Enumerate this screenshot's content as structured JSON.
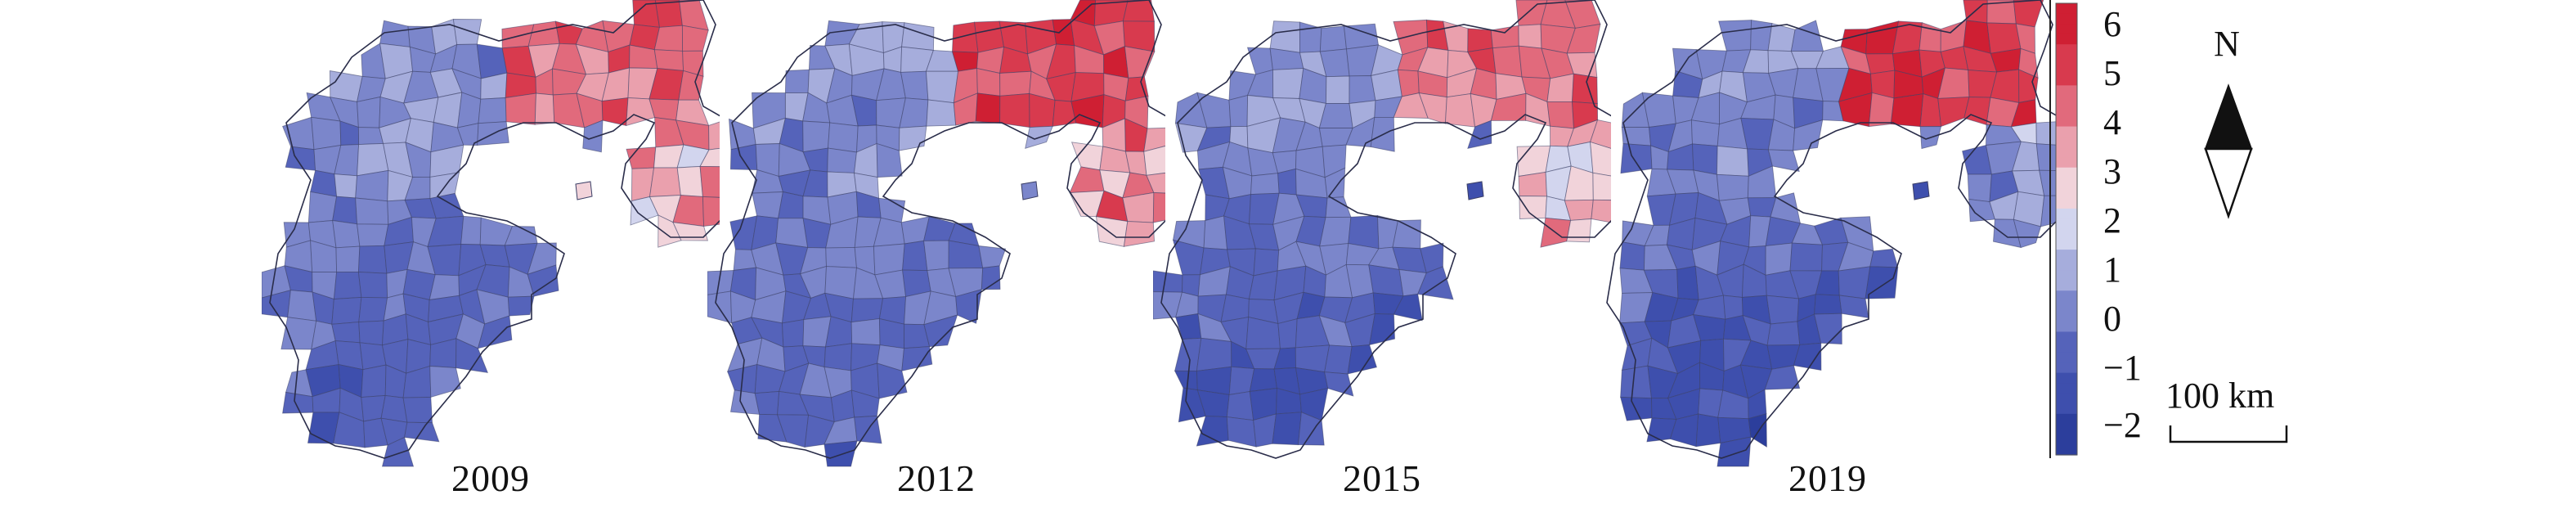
{
  "years": [
    "2009",
    "2012",
    "2015",
    "2019"
  ],
  "legend": {
    "ticks": [
      "6",
      "5",
      "4",
      "3",
      "2",
      "1",
      "0",
      "−1",
      "−2"
    ],
    "range": [
      -2.4,
      6.4
    ],
    "colors": [
      "#2c3e9c",
      "#3e4fad",
      "#5563ba",
      "#7b86cb",
      "#a6addc",
      "#d2d5ee",
      "#f1d3da",
      "#eaa0ad",
      "#e16a7c",
      "#d83a4e",
      "#cf1f33"
    ]
  },
  "north_arrow": {
    "label": "N"
  },
  "scale_bar": {
    "label": "100 km"
  },
  "map_style": {
    "north_region_level": {
      "2009": 4.5,
      "2012": 5.2,
      "2015": 4.3,
      "2019": 5.2
    },
    "east_region_level": {
      "2009": 3.6,
      "2012": 4.0,
      "2015": 3.0,
      "2019": 1.0
    },
    "south_region_level": {
      "2009": -0.5,
      "2012": -0.3,
      "2015": -1.0,
      "2019": -1.3
    }
  }
}
